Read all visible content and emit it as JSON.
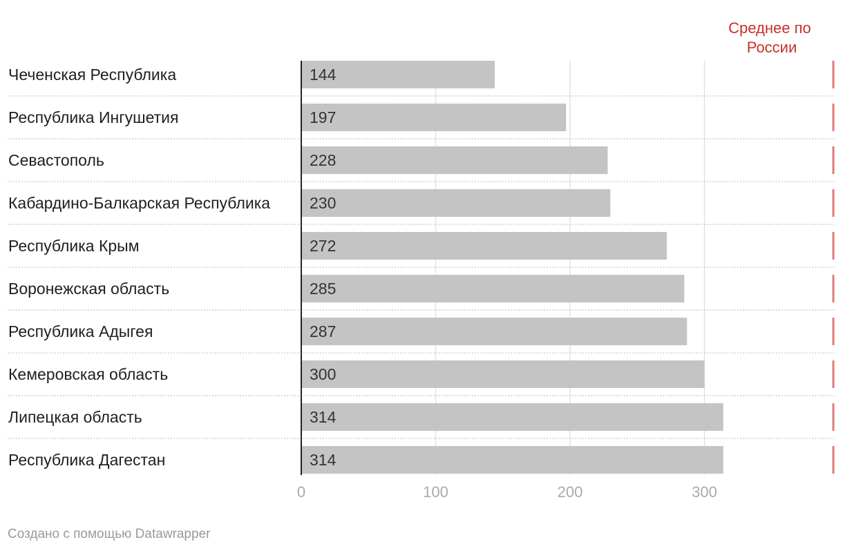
{
  "chart_data": {
    "type": "bar",
    "orientation": "horizontal",
    "categories": [
      "Чеченская Республика",
      "Республика Ингушетия",
      "Севастополь",
      "Кабардино-Балкарская Республика",
      "Республика Крым",
      "Воронежская область",
      "Республика Адыгея",
      "Кемеровская область",
      "Липецкая область",
      "Республика Дагестан"
    ],
    "values": [
      144,
      197,
      228,
      230,
      272,
      285,
      287,
      300,
      314,
      314
    ],
    "xlim": [
      0,
      397
    ],
    "x_ticks": [
      0,
      100,
      200,
      300
    ],
    "grid": true,
    "reference_line": {
      "label": "Среднее по России",
      "label_lines": [
        "Среднее по",
        "России"
      ]
    },
    "colors": {
      "bar": "#c4c4c4",
      "reference": "#e07b78",
      "reference_text": "#c7302c",
      "grid": "#e2e2e2"
    }
  },
  "footer": "Создано с помощью Datawrapper"
}
